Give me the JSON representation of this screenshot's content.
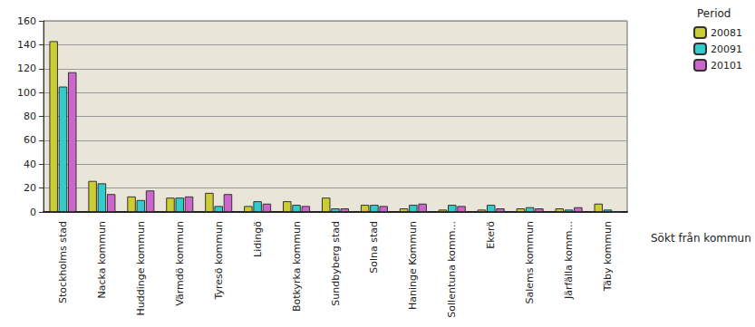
{
  "chart_data": {
    "type": "bar",
    "legend_title": "Period",
    "xlabel": "Sökt från kommun",
    "categories": [
      "Stockholms stad",
      "Nacka kommun",
      "Huddinge kommun",
      "Värmdö kommun",
      "Tyresö kommun",
      "Lidingö",
      "Botkyrka kommun",
      "Sundbyberg stad",
      "Solna stad",
      "Haninge Kommun",
      "Sollentuna komm...",
      "Ekerö",
      "Salems kommun",
      "Järfälla komm...",
      "Täby kommun"
    ],
    "series": [
      {
        "name": "20081",
        "color": "#cccc33",
        "values": [
          143,
          26,
          13,
          12,
          16,
          5,
          9,
          12,
          6,
          3,
          2,
          2,
          3,
          3,
          7
        ]
      },
      {
        "name": "20091",
        "color": "#33cccc",
        "values": [
          105,
          24,
          10,
          12,
          5,
          9,
          6,
          3,
          6,
          6,
          6,
          6,
          4,
          2,
          2
        ]
      },
      {
        "name": "20101",
        "color": "#cc66cc",
        "values": [
          117,
          15,
          18,
          13,
          15,
          7,
          5,
          3,
          5,
          7,
          5,
          3,
          3,
          4,
          0
        ]
      }
    ],
    "ylim": [
      0,
      160
    ],
    "yticks": [
      0,
      20,
      40,
      60,
      80,
      100,
      120,
      140,
      160
    ],
    "grid": true,
    "legend": "top-right"
  }
}
